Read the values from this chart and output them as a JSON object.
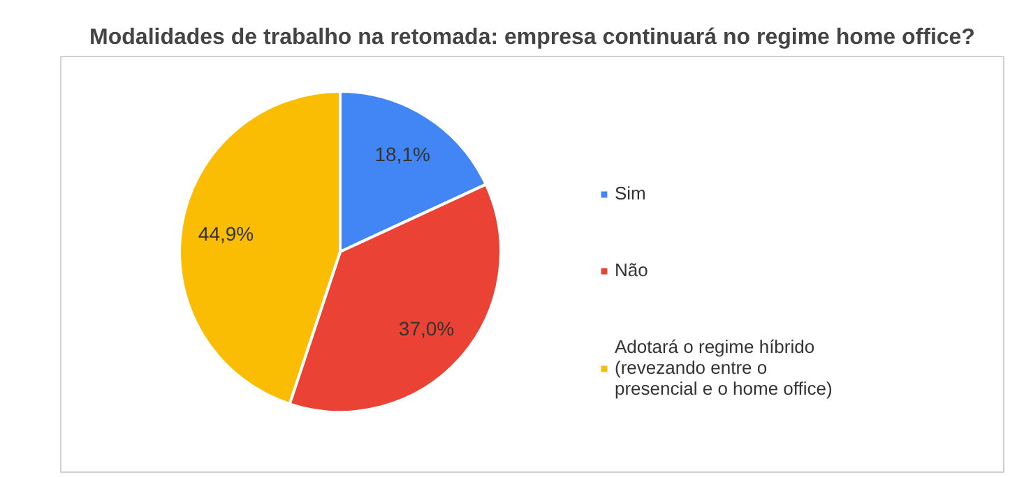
{
  "chart_data": {
    "type": "pie",
    "title": "Modalidades de trabalho na retomada: empresa continuará no regime home office?",
    "categories": [
      "Sim",
      "Não",
      "Adotará o regime híbrido (revezando entre o presencial e o home office)"
    ],
    "values": [
      18.1,
      37.0,
      44.9
    ],
    "colors": [
      "#4285f4",
      "#ea4335",
      "#fbbc04"
    ],
    "value_labels": [
      "18,1%",
      "37,0%",
      "44,9%"
    ],
    "legend": "right"
  }
}
